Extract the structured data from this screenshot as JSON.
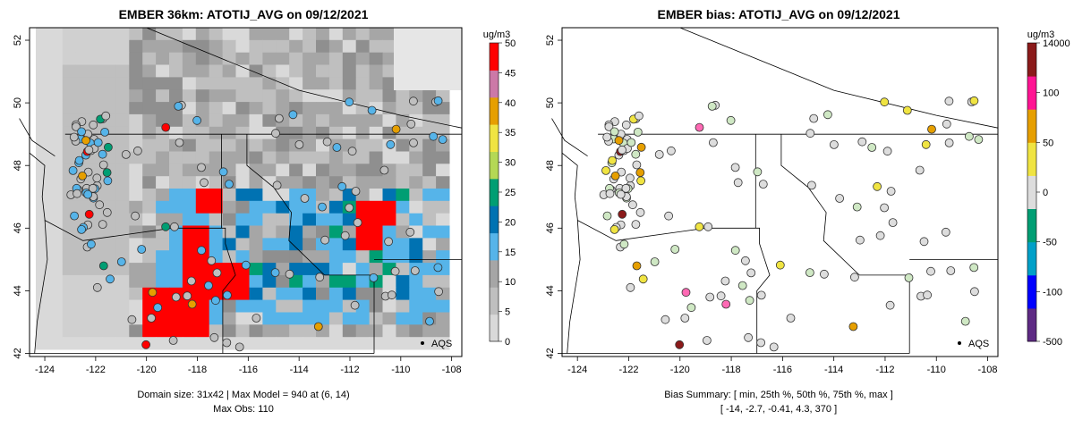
{
  "left_panel": {
    "title": "EMBER 36km: ATOTIJ_AVG on 09/12/2021",
    "x_ticks": [
      "-124",
      "-122",
      "-120",
      "-118",
      "-116",
      "-114",
      "-112",
      "-110",
      "-108"
    ],
    "y_ticks": [
      "52",
      "50",
      "48",
      "46",
      "44",
      "42"
    ],
    "colorbar_unit": "ug/m3",
    "colorbar_ticks": [
      "50",
      "45",
      "40",
      "35",
      "30",
      "25",
      "20",
      "15",
      "10",
      "5",
      "0"
    ],
    "aqs_label": "AQS",
    "caption_line1": "Domain size: 31x42 | Max Model = 940 at (6, 14)",
    "caption_line2": "Max Obs: 110"
  },
  "right_panel": {
    "title": "EMBER bias: ATOTIJ_AVG on 09/12/2021",
    "x_ticks": [
      "-124",
      "-122",
      "-120",
      "-118",
      "-116",
      "-114",
      "-112",
      "-110",
      "-108"
    ],
    "y_ticks": [
      "52",
      "50",
      "48",
      "46",
      "44",
      "42"
    ],
    "colorbar_unit": "ug/m3",
    "colorbar_ticks": [
      "14000",
      "100",
      "50",
      "0",
      "-50",
      "-100",
      "-500"
    ],
    "aqs_label": "AQS",
    "caption_line1": "Bias Summary: [ min, 25th %, 50th %, 75th %, max ]",
    "caption_line2": "[ -14,   -2.7,   -0.41,   4.3,   370 ]"
  },
  "colors": {
    "model_scale": [
      "#d9d9d9",
      "#bfbfbf",
      "#a6a6a6",
      "#56b4e9",
      "#0072b2",
      "#009e73",
      "#b4d855",
      "#f0e442",
      "#e69f00",
      "#cc79a7",
      "#ff0000"
    ],
    "bias_scale": [
      "#5e2a84",
      "#0000ff",
      "#00a0c8",
      "#009e73",
      "#dddddd",
      "#f0e442",
      "#e69f00",
      "#ff1493",
      "#8b1a1a"
    ]
  }
}
